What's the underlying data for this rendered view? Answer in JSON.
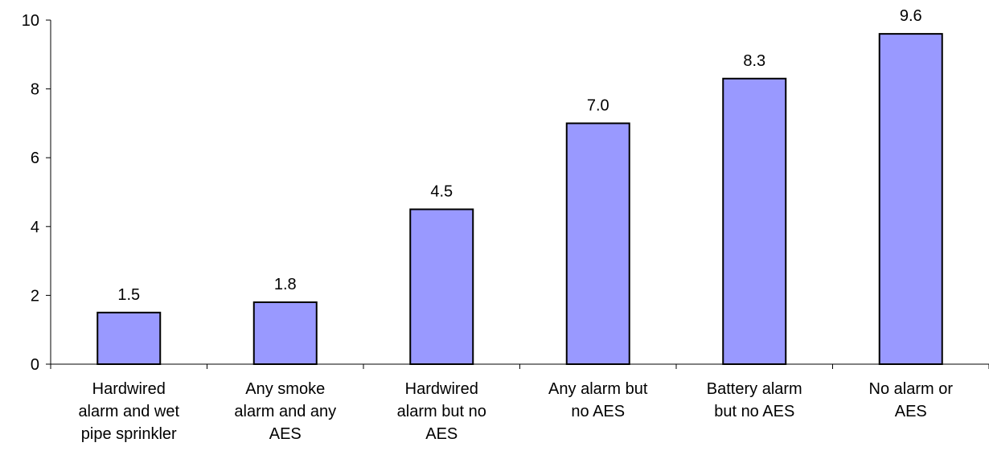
{
  "chart_data": {
    "type": "bar",
    "categories": [
      [
        "Hardwired",
        "alarm and wet",
        "pipe sprinkler"
      ],
      [
        "Any smoke",
        "alarm and any",
        "AES"
      ],
      [
        "Hardwired",
        "alarm but no",
        "AES"
      ],
      [
        "Any alarm but",
        "no AES"
      ],
      [
        "Battery alarm",
        "but no AES"
      ],
      [
        "No alarm or",
        "AES"
      ]
    ],
    "values": [
      1.5,
      1.8,
      4.5,
      7.0,
      8.3,
      9.6
    ],
    "value_labels": [
      "1.5",
      "1.8",
      "4.5",
      "7.0",
      "8.3",
      "9.6"
    ],
    "title": "",
    "xlabel": "",
    "ylabel": "",
    "ylim": [
      0,
      10
    ],
    "yticks": [
      "0",
      "2",
      "4",
      "6",
      "8",
      "10"
    ],
    "grid": false,
    "legend": "none",
    "colors": {
      "bar_fill": "#9999ff",
      "bar_stroke": "#000000",
      "axis": "#000000"
    }
  }
}
